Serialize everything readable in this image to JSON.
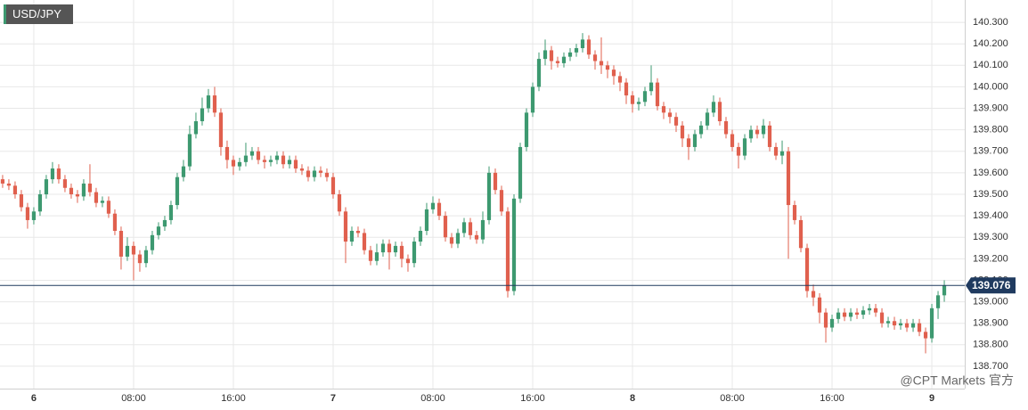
{
  "chart_data": {
    "type": "candlestick",
    "title": "USD/JPY",
    "watermark": "@CPT Markets 官方",
    "up_color": "#3d9970",
    "down_color": "#e0604e",
    "last_price": {
      "value": 139.076,
      "label": "139.076"
    },
    "last_color": "#1f3a5f",
    "grid": true,
    "xlim": [
      -2.71,
      74.64
    ],
    "ylim": [
      138.596,
      140.404
    ],
    "xticks": [
      {
        "value": 0,
        "label": "6"
      },
      {
        "value": 8,
        "label": "08:00"
      },
      {
        "value": 16,
        "label": "16:00"
      },
      {
        "value": 24,
        "label": "7"
      },
      {
        "value": 32,
        "label": "08:00"
      },
      {
        "value": 40,
        "label": "16:00"
      },
      {
        "value": 48,
        "label": "8"
      },
      {
        "value": 56,
        "label": "08:00"
      },
      {
        "value": 64,
        "label": "16:00"
      },
      {
        "value": 72,
        "label": "9"
      }
    ],
    "yticks": [
      {
        "value": 138.7,
        "label": "138.700"
      },
      {
        "value": 138.8,
        "label": "138.800"
      },
      {
        "value": 138.9,
        "label": "138.900"
      },
      {
        "value": 139.0,
        "label": "139.000"
      },
      {
        "value": 139.1,
        "label": "139.100"
      },
      {
        "value": 139.2,
        "label": "139.200"
      },
      {
        "value": 139.3,
        "label": "139.300"
      },
      {
        "value": 139.4,
        "label": "139.400"
      },
      {
        "value": 139.5,
        "label": "139.500"
      },
      {
        "value": 139.6,
        "label": "139.600"
      },
      {
        "value": 139.7,
        "label": "139.700"
      },
      {
        "value": 139.8,
        "label": "139.800"
      },
      {
        "value": 139.9,
        "label": "139.900"
      },
      {
        "value": 140.0,
        "label": "140.000"
      },
      {
        "value": 140.1,
        "label": "140.100"
      },
      {
        "value": 140.2,
        "label": "140.200"
      },
      {
        "value": 140.3,
        "label": "140.300"
      }
    ],
    "x": [
      -2.5,
      -2,
      -1.5,
      -1,
      -0.5,
      0,
      0.5,
      1,
      1.5,
      2,
      2.5,
      3,
      3.5,
      4,
      4.5,
      5,
      5.5,
      6,
      6.5,
      7,
      7.5,
      8,
      8.5,
      9,
      9.5,
      10,
      10.5,
      11,
      11.5,
      12,
      12.5,
      13,
      13.5,
      14,
      14.5,
      15,
      15.5,
      16,
      16.5,
      17,
      17.5,
      18,
      18.5,
      19,
      19.5,
      20,
      20.5,
      21,
      21.5,
      22,
      22.5,
      23,
      23.5,
      24,
      24.5,
      25,
      25.5,
      26,
      26.5,
      27,
      27.5,
      28,
      28.5,
      29,
      29.5,
      30,
      30.5,
      31,
      31.5,
      32,
      32.5,
      33,
      33.5,
      34,
      34.5,
      35,
      35.5,
      36,
      36.5,
      37,
      37.5,
      38,
      38.5,
      39,
      39.5,
      40,
      40.5,
      41,
      41.5,
      42,
      42.5,
      43,
      43.5,
      44,
      44.5,
      45,
      45.5,
      46,
      46.5,
      47,
      47.5,
      48,
      48.5,
      49,
      49.5,
      50,
      50.5,
      51,
      51.5,
      52,
      52.5,
      53,
      53.5,
      54,
      54.5,
      55,
      55.5,
      56,
      56.5,
      57,
      57.5,
      58,
      58.5,
      59,
      59.5,
      60,
      60.5,
      61,
      61.5,
      62,
      62.5,
      63,
      63.5,
      64,
      64.5,
      65,
      65.5,
      66,
      66.5,
      67,
      67.5,
      68,
      68.5,
      69,
      69.5,
      70,
      70.5,
      71,
      71.5,
      72,
      72.5,
      73
    ],
    "open": [
      139.57,
      139.55,
      139.54,
      139.5,
      139.44,
      139.38,
      139.42,
      139.5,
      139.57,
      139.62,
      139.57,
      139.53,
      139.5,
      139.49,
      139.55,
      139.51,
      139.46,
      139.47,
      139.41,
      139.33,
      139.21,
      139.26,
      139.22,
      139.18,
      139.24,
      139.31,
      139.35,
      139.38,
      139.45,
      139.58,
      139.63,
      139.78,
      139.84,
      139.9,
      139.96,
      139.88,
      139.72,
      139.66,
      139.63,
      139.65,
      139.68,
      139.7,
      139.66,
      139.65,
      139.66,
      139.68,
      139.64,
      139.66,
      139.62,
      139.61,
      139.58,
      139.61,
      139.6,
      139.58,
      139.5,
      139.42,
      139.28,
      139.33,
      139.32,
      139.24,
      139.19,
      139.23,
      139.27,
      139.23,
      139.26,
      139.2,
      139.18,
      139.28,
      139.33,
      139.43,
      139.46,
      139.4,
      139.3,
      139.27,
      139.32,
      139.37,
      139.31,
      139.29,
      139.38,
      139.6,
      139.52,
      139.42,
      139.05,
      139.48,
      139.72,
      139.88,
      140.0,
      140.13,
      140.17,
      140.12,
      140.11,
      140.14,
      140.16,
      140.18,
      140.22,
      140.15,
      140.12,
      140.1,
      140.08,
      140.05,
      140.02,
      139.96,
      139.92,
      139.93,
      139.98,
      140.02,
      139.91,
      139.88,
      139.86,
      139.82,
      139.76,
      139.72,
      139.78,
      139.82,
      139.88,
      139.93,
      139.84,
      139.78,
      139.72,
      139.68,
      139.76,
      139.8,
      139.78,
      139.82,
      139.72,
      139.68,
      139.7,
      139.45,
      139.38,
      139.25,
      139.05,
      139.02,
      138.95,
      138.88,
      138.92,
      138.95,
      138.93,
      138.95,
      138.94,
      138.96,
      138.97,
      138.95,
      138.9,
      138.91,
      138.89,
      138.9,
      138.88,
      138.9,
      138.86,
      138.83,
      138.97,
      139.03
    ],
    "high": [
      139.59,
      139.57,
      139.56,
      139.52,
      139.46,
      139.44,
      139.52,
      139.59,
      139.65,
      139.64,
      139.59,
      139.55,
      139.52,
      139.57,
      139.64,
      139.53,
      139.49,
      139.49,
      139.43,
      139.35,
      139.3,
      139.28,
      139.24,
      139.26,
      139.33,
      139.37,
      139.4,
      139.47,
      139.6,
      139.66,
      139.82,
      139.88,
      139.95,
      139.99,
      140.0,
      139.9,
      139.75,
      139.68,
      139.67,
      139.74,
      139.72,
      139.72,
      139.68,
      139.68,
      139.7,
      139.7,
      139.68,
      139.68,
      139.64,
      139.63,
      139.63,
      139.63,
      139.62,
      139.6,
      139.52,
      139.44,
      139.35,
      139.35,
      139.34,
      139.26,
      139.27,
      139.29,
      139.29,
      139.28,
      139.28,
      139.22,
      139.3,
      139.35,
      139.46,
      139.49,
      139.48,
      139.42,
      139.32,
      139.34,
      139.39,
      139.39,
      139.33,
      139.42,
      139.63,
      139.62,
      139.54,
      139.44,
      139.5,
      139.74,
      139.9,
      140.02,
      140.16,
      140.22,
      140.19,
      140.14,
      140.16,
      140.18,
      140.2,
      140.25,
      140.24,
      140.17,
      140.23,
      140.12,
      140.1,
      140.07,
      140.04,
      139.98,
      139.95,
      140.0,
      140.1,
      140.04,
      139.93,
      139.9,
      139.88,
      139.84,
      139.78,
      139.8,
      139.84,
      139.9,
      139.96,
      139.95,
      139.86,
      139.8,
      139.74,
      139.78,
      139.82,
      139.82,
      139.85,
      139.84,
      139.74,
      139.75,
      139.72,
      139.47,
      139.4,
      139.27,
      139.08,
      139.04,
      138.97,
      138.94,
      138.97,
      138.97,
      138.97,
      138.97,
      138.98,
      138.99,
      138.99,
      138.97,
      138.93,
      138.93,
      138.92,
      138.92,
      138.92,
      138.92,
      138.88,
      138.99,
      139.05,
      139.1
    ],
    "low": [
      139.53,
      139.52,
      139.48,
      139.42,
      139.34,
      139.36,
      139.4,
      139.48,
      139.55,
      139.55,
      139.51,
      139.48,
      139.46,
      139.47,
      139.49,
      139.44,
      139.44,
      139.39,
      139.31,
      139.15,
      139.19,
      139.1,
      139.14,
      139.16,
      139.22,
      139.29,
      139.33,
      139.36,
      139.43,
      139.56,
      139.61,
      139.76,
      139.82,
      139.88,
      139.86,
      139.68,
      139.62,
      139.59,
      139.61,
      139.63,
      139.66,
      139.64,
      139.62,
      139.63,
      139.64,
      139.62,
      139.62,
      139.6,
      139.59,
      139.56,
      139.56,
      139.58,
      139.56,
      139.48,
      139.4,
      139.18,
      139.26,
      139.3,
      139.22,
      139.17,
      139.17,
      139.21,
      139.15,
      139.21,
      139.16,
      139.14,
      139.16,
      139.26,
      139.31,
      139.41,
      139.38,
      139.28,
      139.25,
      139.25,
      139.3,
      139.29,
      139.27,
      139.27,
      139.36,
      139.5,
      139.4,
      139.02,
      139.03,
      139.46,
      139.7,
      139.86,
      139.98,
      140.1,
      140.08,
      140.09,
      140.09,
      140.12,
      140.14,
      140.16,
      140.13,
      140.08,
      140.06,
      140.04,
      140.01,
      139.98,
      139.92,
      139.88,
      139.89,
      139.91,
      139.96,
      139.89,
      139.85,
      139.83,
      139.79,
      139.72,
      139.66,
      139.7,
      139.76,
      139.8,
      139.86,
      139.82,
      139.76,
      139.7,
      139.62,
      139.66,
      139.74,
      139.76,
      139.76,
      139.7,
      139.66,
      139.64,
      139.2,
      139.36,
      139.23,
      139.02,
      138.98,
      138.9,
      138.81,
      138.86,
      138.9,
      138.91,
      138.91,
      138.92,
      138.92,
      138.94,
      138.93,
      138.88,
      138.88,
      138.87,
      138.87,
      138.86,
      138.86,
      138.84,
      138.76,
      138.81,
      138.92,
      139.0
    ],
    "close": [
      139.55,
      139.54,
      139.5,
      139.44,
      139.38,
      139.42,
      139.5,
      139.57,
      139.62,
      139.57,
      139.53,
      139.5,
      139.49,
      139.55,
      139.51,
      139.46,
      139.47,
      139.41,
      139.33,
      139.21,
      139.26,
      139.22,
      139.18,
      139.24,
      139.31,
      139.35,
      139.38,
      139.45,
      139.58,
      139.63,
      139.78,
      139.84,
      139.9,
      139.96,
      139.88,
      139.72,
      139.66,
      139.63,
      139.65,
      139.68,
      139.7,
      139.66,
      139.65,
      139.66,
      139.68,
      139.64,
      139.66,
      139.62,
      139.61,
      139.58,
      139.61,
      139.6,
      139.58,
      139.5,
      139.42,
      139.28,
      139.33,
      139.32,
      139.24,
      139.19,
      139.23,
      139.27,
      139.23,
      139.26,
      139.2,
      139.18,
      139.28,
      139.33,
      139.43,
      139.46,
      139.4,
      139.3,
      139.27,
      139.32,
      139.37,
      139.31,
      139.29,
      139.38,
      139.6,
      139.52,
      139.42,
      139.05,
      139.48,
      139.72,
      139.88,
      140.0,
      140.13,
      140.17,
      140.12,
      140.11,
      140.14,
      140.16,
      140.18,
      140.22,
      140.15,
      140.12,
      140.1,
      140.08,
      140.05,
      140.02,
      139.96,
      139.92,
      139.93,
      139.98,
      140.02,
      139.91,
      139.88,
      139.86,
      139.82,
      139.76,
      139.72,
      139.78,
      139.82,
      139.88,
      139.93,
      139.84,
      139.78,
      139.72,
      139.68,
      139.76,
      139.8,
      139.78,
      139.82,
      139.72,
      139.68,
      139.7,
      139.45,
      139.38,
      139.25,
      139.05,
      139.02,
      138.95,
      138.88,
      138.92,
      138.95,
      138.93,
      138.95,
      138.94,
      138.96,
      138.97,
      138.95,
      138.9,
      138.91,
      138.89,
      138.9,
      138.88,
      138.9,
      138.86,
      138.83,
      138.97,
      139.03,
      139.076
    ]
  }
}
